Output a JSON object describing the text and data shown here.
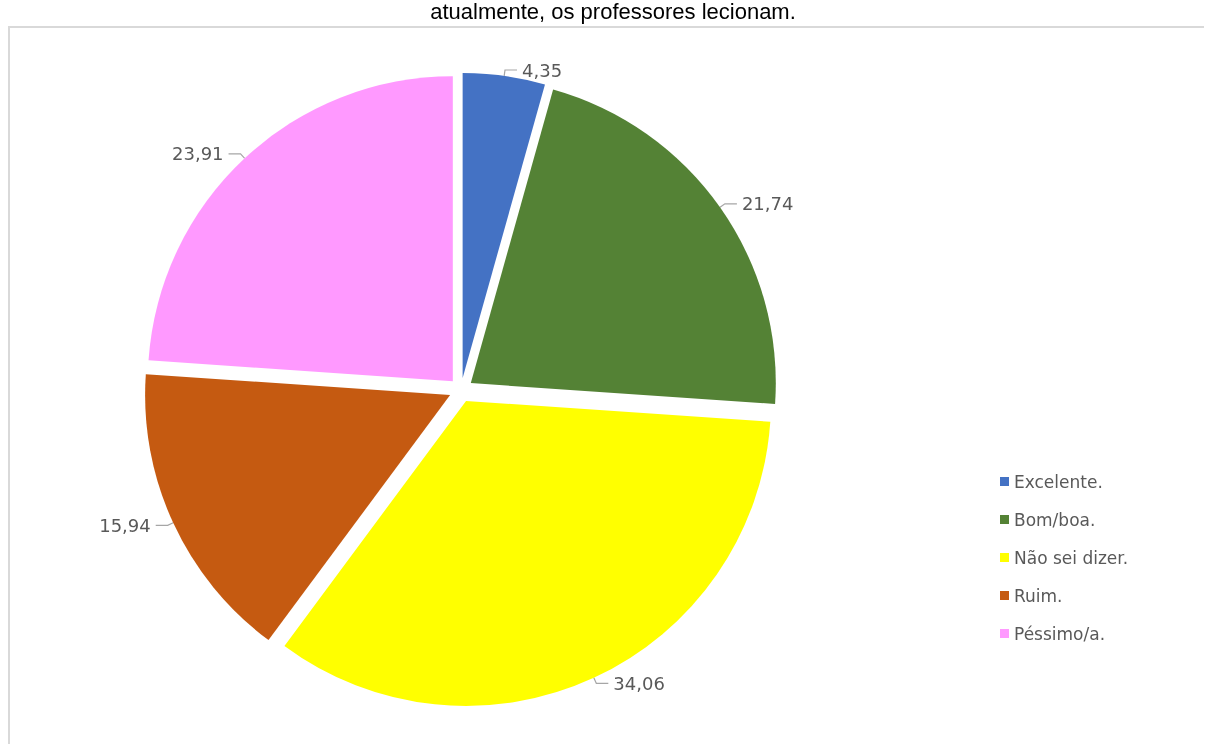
{
  "chart_data": {
    "type": "pie",
    "title": "atualmente, os professores lecionam.",
    "categories": [
      "Excelente.",
      "Bom/boa.",
      "Não sei dizer.",
      "Ruim.",
      "Péssimo/a."
    ],
    "values": [
      4.35,
      21.74,
      34.06,
      15.94,
      23.91
    ],
    "value_labels": [
      "4,35",
      "21,74",
      "34,06",
      "15,94",
      "23,91"
    ],
    "colors": [
      "#4472c4",
      "#548235",
      "#ffff00",
      "#c55a11",
      "#ff99ff"
    ],
    "legend": "right"
  }
}
